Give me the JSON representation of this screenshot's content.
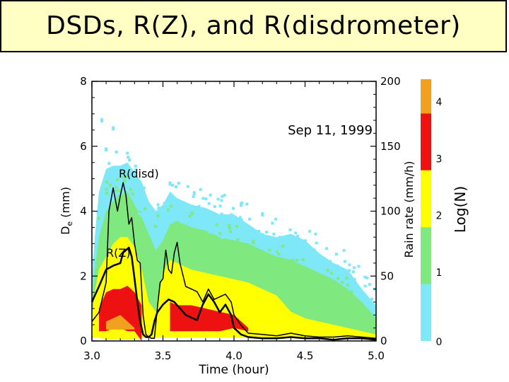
{
  "slide": {
    "title": "DSDs, R(Z), and R(disdrometer)"
  },
  "colors": {
    "log_0_1": "#7ee8f8",
    "log_1_2": "#7fe87f",
    "log_2_3": "#ffff00",
    "log_3_4": "#ee1111",
    "log_4_plus": "#f2a020",
    "title_bg": "#ffffc4"
  },
  "chart_data": {
    "type": "heatmap",
    "title": "Sep 11, 1999",
    "xlabel": "Time (hour)",
    "ylabel_left": "De (mm)",
    "ylabel_left_main": "D",
    "ylabel_left_sub": "e",
    "ylabel_left_unit": "(mm)",
    "ylabel_right": "Rain rate (mm/h)",
    "xlim": [
      3.0,
      5.0
    ],
    "ylim_left": [
      0,
      8
    ],
    "ylim_right": [
      0,
      200
    ],
    "x_ticks": [
      {
        "value": 3.0,
        "label": "3.0"
      },
      {
        "value": 3.5,
        "label": "3.5"
      },
      {
        "value": 4.0,
        "label": "4.0"
      },
      {
        "value": 4.5,
        "label": "4.5"
      },
      {
        "value": 5.0,
        "label": "5.0"
      }
    ],
    "y_left_ticks": [
      {
        "value": 0,
        "label": "0"
      },
      {
        "value": 2,
        "label": "2"
      },
      {
        "value": 4,
        "label": "4"
      },
      {
        "value": 6,
        "label": "6"
      },
      {
        "value": 8,
        "label": "8"
      }
    ],
    "y_right_ticks": [
      {
        "value": 0,
        "label": "0"
      },
      {
        "value": 50,
        "label": "50"
      },
      {
        "value": 100,
        "label": "100"
      },
      {
        "value": 150,
        "label": "150"
      },
      {
        "value": 200,
        "label": "200"
      }
    ],
    "colorbar": {
      "label": "Log(N)",
      "ticks": [
        "0",
        "1",
        "2",
        "3",
        "4"
      ],
      "bands": [
        {
          "from": 0,
          "to": 1,
          "color_key": "log_0_1"
        },
        {
          "from": 1,
          "to": 2,
          "color_key": "log_1_2"
        },
        {
          "from": 2,
          "to": 3,
          "color_key": "log_2_3"
        },
        {
          "from": 3,
          "to": 4,
          "color_key": "log_3_4"
        },
        {
          "from": 4,
          "to": 4.6,
          "color_key": "log_4_plus"
        }
      ]
    },
    "density_envelope": {
      "x": [
        3.0,
        3.02,
        3.05,
        3.1,
        3.15,
        3.2,
        3.25,
        3.3,
        3.35,
        3.4,
        3.45,
        3.5,
        3.55,
        3.6,
        3.7,
        3.8,
        3.9,
        4.0,
        4.1,
        4.2,
        4.3,
        4.4,
        4.5,
        4.6,
        4.7,
        4.8,
        4.9,
        5.0
      ],
      "upper_log0": [
        1.9,
        3.2,
        4.6,
        5.3,
        5.4,
        5.4,
        5.5,
        5.2,
        4.9,
        4.3,
        4.0,
        4.2,
        4.6,
        4.4,
        4.2,
        4.1,
        3.9,
        3.9,
        3.6,
        3.3,
        3.2,
        3.3,
        3.1,
        2.7,
        2.4,
        2.2,
        1.6,
        1.1
      ],
      "upper_log1": [
        1.1,
        2.2,
        3.2,
        4.0,
        4.3,
        4.5,
        4.6,
        4.2,
        3.8,
        3.3,
        2.8,
        3.1,
        3.6,
        3.7,
        3.5,
        3.4,
        3.2,
        3.1,
        3.0,
        2.8,
        2.6,
        2.5,
        2.3,
        2.1,
        1.9,
        1.6,
        1.2,
        0.7
      ],
      "upper_log2": [
        0.7,
        1.5,
        2.2,
        2.6,
        3.0,
        3.2,
        3.2,
        2.9,
        2.2,
        1.2,
        0.9,
        2.1,
        2.5,
        2.4,
        2.2,
        2.1,
        2.0,
        1.9,
        1.8,
        1.6,
        1.4,
        0.9,
        0.7,
        0.6,
        0.5,
        0.4,
        0.3,
        0.2
      ],
      "upper_log3": [
        0,
        0.2,
        1.0,
        1.5,
        1.6,
        1.6,
        1.7,
        1.5,
        1.1,
        0,
        0,
        0.2,
        1.2,
        1.1,
        1.1,
        1.0,
        0.9,
        0.8,
        0.4,
        0.2,
        0,
        0,
        0,
        0,
        0,
        0,
        0,
        0
      ],
      "upper_log4": [
        0,
        0,
        0.2,
        0.6,
        0.7,
        0.8,
        0.6,
        0.4,
        0,
        0,
        0,
        0,
        0,
        0,
        0,
        0,
        0,
        0,
        0,
        0,
        0,
        0,
        0,
        0,
        0,
        0,
        0,
        0
      ],
      "lower_all": [
        0.1,
        0.1,
        0.1,
        0.05,
        0.05,
        0.05,
        0.05,
        0.05,
        0.1,
        0.1,
        0.1,
        0.1,
        0.1,
        0.1,
        0.1,
        0.1,
        0.1,
        0.1,
        0.1,
        0.1,
        0.1,
        0.1,
        0.1,
        0.1,
        0.1,
        0.1,
        0.1,
        0.1
      ],
      "lower_log3": [
        0,
        0.3,
        0.3,
        0.3,
        0.4,
        0.4,
        0.3,
        0.3,
        0,
        0,
        0,
        0.4,
        0.3,
        0.3,
        0.3,
        0.3,
        0.3,
        0.4,
        0.3,
        0.3,
        0,
        0,
        0,
        0,
        0,
        0,
        0,
        0
      ],
      "lower_log4": [
        0,
        0,
        0.3,
        0.35,
        0.35,
        0.35,
        0.35,
        0.35,
        0,
        0,
        0,
        0,
        0,
        0,
        0,
        0,
        0,
        0,
        0,
        0,
        0,
        0,
        0,
        0,
        0,
        0,
        0,
        0
      ]
    },
    "series": [
      {
        "name": "R(disd)",
        "axis": "right",
        "x": [
          3.0,
          3.05,
          3.1,
          3.12,
          3.15,
          3.18,
          3.2,
          3.22,
          3.24,
          3.26,
          3.28,
          3.3,
          3.32,
          3.34,
          3.36,
          3.38,
          3.4,
          3.42,
          3.44,
          3.46,
          3.48,
          3.5,
          3.52,
          3.54,
          3.56,
          3.58,
          3.6,
          3.62,
          3.66,
          3.7,
          3.74,
          3.78,
          3.82,
          3.86,
          3.9,
          3.94,
          3.98,
          4.0,
          4.05,
          4.1,
          4.2,
          4.3,
          4.4,
          4.5,
          4.6,
          4.7,
          4.8,
          4.9,
          5.0
        ],
        "values": [
          15,
          22,
          45,
          100,
          118,
          100,
          112,
          122,
          112,
          90,
          95,
          75,
          62,
          60,
          20,
          5,
          3,
          2,
          2,
          25,
          45,
          48,
          70,
          55,
          52,
          68,
          76,
          60,
          42,
          40,
          38,
          30,
          40,
          32,
          34,
          36,
          30,
          20,
          12,
          6,
          5,
          4,
          6,
          4,
          3,
          3,
          4,
          3,
          2
        ]
      },
      {
        "name": "R(Z)",
        "axis": "right",
        "x": [
          3.0,
          3.05,
          3.1,
          3.15,
          3.2,
          3.22,
          3.24,
          3.26,
          3.28,
          3.3,
          3.32,
          3.34,
          3.36,
          3.38,
          3.4,
          3.42,
          3.44,
          3.46,
          3.5,
          3.54,
          3.58,
          3.62,
          3.66,
          3.7,
          3.74,
          3.78,
          3.82,
          3.86,
          3.9,
          3.94,
          3.98,
          4.0,
          4.05,
          4.1,
          4.2,
          4.3,
          4.4,
          4.5,
          4.6,
          4.7,
          4.8,
          4.9,
          5.0
        ],
        "values": [
          30,
          42,
          55,
          58,
          60,
          68,
          70,
          72,
          65,
          48,
          30,
          15,
          5,
          3,
          3,
          5,
          15,
          22,
          28,
          32,
          30,
          25,
          20,
          18,
          16,
          28,
          36,
          30,
          22,
          28,
          20,
          10,
          5,
          3,
          2,
          2,
          3,
          2,
          2,
          1,
          2,
          2,
          1
        ]
      }
    ],
    "annotations": [
      {
        "text": "R(disd)",
        "x": 3.2,
        "y_left": 5.2
      },
      {
        "text": "R(Z)",
        "x": 3.1,
        "y_left": 2.8
      }
    ]
  }
}
